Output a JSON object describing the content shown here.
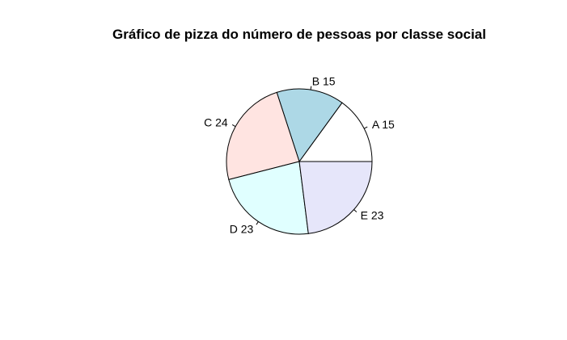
{
  "chart_data": {
    "type": "pie",
    "title": "Gráfico de pizza do número de pessoas por classe social",
    "categories": [
      "A",
      "B",
      "C",
      "D",
      "E"
    ],
    "values": [
      15,
      15,
      24,
      23,
      23
    ],
    "labels": [
      "A 15",
      "B 15",
      "C 24",
      "D 23",
      "E 23"
    ],
    "colors": [
      "#ffffff",
      "#add8e6",
      "#ffe4e1",
      "#e0ffff",
      "#e6e6fa"
    ],
    "start_angle_deg": 0,
    "direction": "counterclockwise"
  }
}
